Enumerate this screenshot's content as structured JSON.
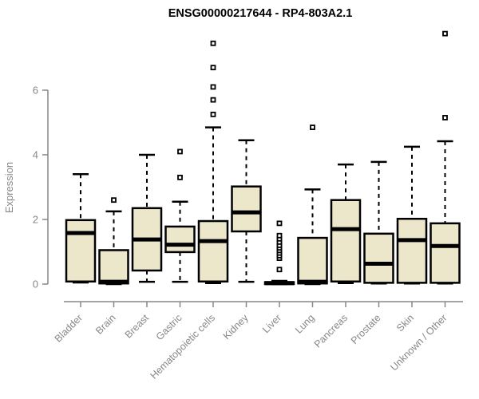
{
  "chart_data": {
    "type": "boxplot",
    "title": "ENSG00000217644 - RP4-803A2.1",
    "xlabel": "",
    "ylabel": "Expression",
    "ylim": [
      0,
      7.9
    ],
    "yticks": [
      0,
      2,
      4,
      6
    ],
    "grid": false,
    "legend": "none",
    "colors": {
      "box_fill": "#ECE7CB",
      "box_stroke": "#000000",
      "median": "#000000",
      "axis": "#878787",
      "title": "#000000"
    },
    "categories": [
      "Bladder",
      "Brain",
      "Breast",
      "Gastric",
      "Hematopoietic cells",
      "Kidney",
      "Liver",
      "Lung",
      "Pancreas",
      "Prostate",
      "Skin",
      "Unknown / Other"
    ],
    "boxes": [
      {
        "category": "Bladder",
        "whisker_low": 0.05,
        "q1": 0.08,
        "median": 1.58,
        "q3": 1.98,
        "whisker_high": 3.4,
        "outliers": []
      },
      {
        "category": "Brain",
        "whisker_low": 0.0,
        "q1": 0.02,
        "median": 0.07,
        "q3": 1.05,
        "whisker_high": 2.25,
        "outliers": [
          2.6
        ]
      },
      {
        "category": "Breast",
        "whisker_low": 0.07,
        "q1": 0.42,
        "median": 1.38,
        "q3": 2.35,
        "whisker_high": 4.0,
        "outliers": []
      },
      {
        "category": "Gastric",
        "whisker_low": 0.07,
        "q1": 0.99,
        "median": 1.22,
        "q3": 1.78,
        "whisker_high": 2.55,
        "outliers": [
          3.3,
          4.1
        ]
      },
      {
        "category": "Hematopoietic cells",
        "whisker_low": 0.03,
        "q1": 0.08,
        "median": 1.33,
        "q3": 1.95,
        "whisker_high": 4.85,
        "outliers": [
          5.25,
          5.7,
          6.1,
          6.7,
          7.45
        ]
      },
      {
        "category": "Kidney",
        "whisker_low": 0.07,
        "q1": 1.63,
        "median": 2.22,
        "q3": 3.02,
        "whisker_high": 4.45,
        "outliers": []
      },
      {
        "category": "Liver",
        "whisker_low": 0.0,
        "q1": 0.0,
        "median": 0.03,
        "q3": 0.06,
        "whisker_high": 0.1,
        "outliers": [
          0.45,
          0.8,
          0.88,
          0.96,
          1.04,
          1.12,
          1.2,
          1.3,
          1.4,
          1.5,
          1.88
        ]
      },
      {
        "category": "Lung",
        "whisker_low": 0.0,
        "q1": 0.02,
        "median": 0.07,
        "q3": 1.43,
        "whisker_high": 2.93,
        "outliers": [
          4.85
        ]
      },
      {
        "category": "Pancreas",
        "whisker_low": 0.03,
        "q1": 0.08,
        "median": 1.7,
        "q3": 2.6,
        "whisker_high": 3.7,
        "outliers": []
      },
      {
        "category": "Prostate",
        "whisker_low": 0.02,
        "q1": 0.04,
        "median": 0.63,
        "q3": 1.56,
        "whisker_high": 3.78,
        "outliers": []
      },
      {
        "category": "Skin",
        "whisker_low": 0.02,
        "q1": 0.04,
        "median": 1.36,
        "q3": 2.02,
        "whisker_high": 4.25,
        "outliers": []
      },
      {
        "category": "Unknown / Other",
        "whisker_low": 0.02,
        "q1": 0.04,
        "median": 1.18,
        "q3": 1.88,
        "whisker_high": 4.42,
        "outliers": [
          5.15,
          7.75
        ]
      }
    ]
  }
}
